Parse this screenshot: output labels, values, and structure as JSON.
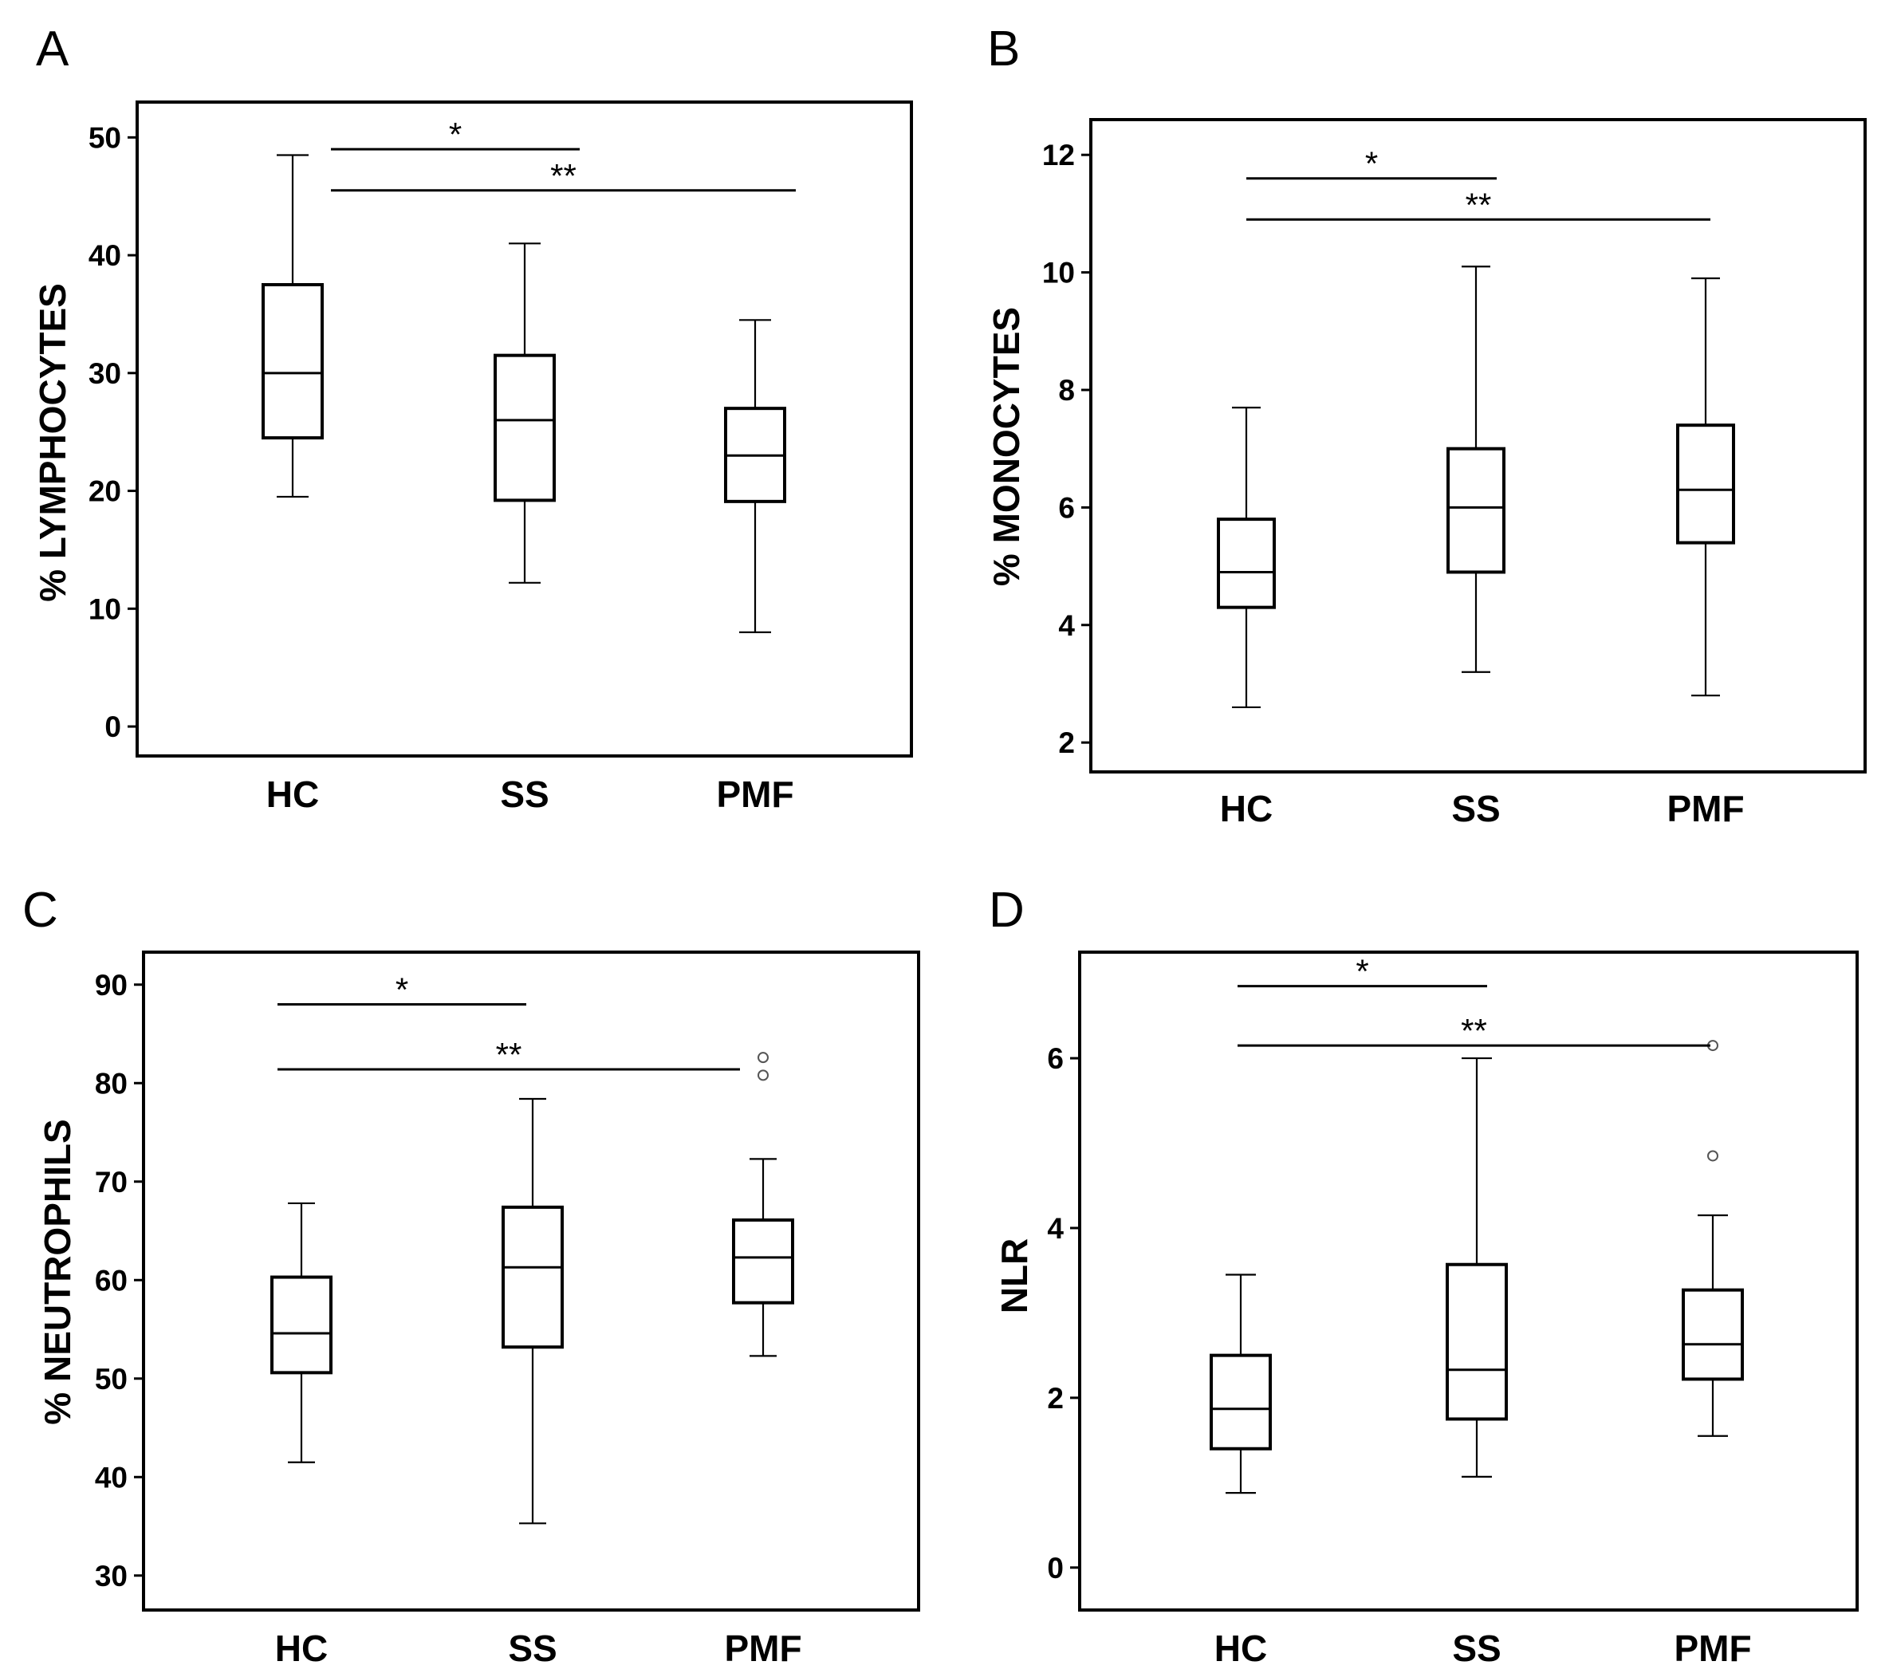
{
  "chart_data": [
    {
      "panel": "A",
      "type": "box",
      "ylabel": "% LYMPHOCYTES",
      "categories": [
        "HC",
        "SS",
        "PMF"
      ],
      "ylim": [
        -2.5,
        53
      ],
      "yticks": [
        0,
        10,
        20,
        30,
        40,
        50
      ],
      "tick_labels": [
        "0",
        "10",
        "20",
        "30",
        "40",
        "50"
      ],
      "boxes": [
        {
          "min": 19.5,
          "q1": 24.5,
          "median": 30.0,
          "q3": 37.5,
          "max": 48.5,
          "outliers": []
        },
        {
          "min": 12.2,
          "q1": 19.2,
          "median": 26.0,
          "q3": 31.5,
          "max": 41.0,
          "outliers": []
        },
        {
          "min": 8.0,
          "q1": 19.1,
          "median": 23.0,
          "q3": 27.0,
          "max": 34.5,
          "outliers": []
        }
      ],
      "significance": [
        {
          "from": 0,
          "to": 1,
          "label": "*",
          "y": 49.0
        },
        {
          "from": 0,
          "to": 2,
          "label": "**",
          "y": 45.5
        }
      ]
    },
    {
      "panel": "B",
      "type": "box",
      "ylabel": "% MONOCYTES",
      "categories": [
        "HC",
        "SS",
        "PMF"
      ],
      "ylim": [
        1.5,
        12.6
      ],
      "yticks": [
        2,
        4,
        6,
        8,
        10,
        12
      ],
      "tick_labels": [
        "2",
        "4",
        "6",
        "8",
        "10",
        "12"
      ],
      "boxes": [
        {
          "min": 2.6,
          "q1": 4.3,
          "median": 4.9,
          "q3": 5.8,
          "max": 7.7,
          "outliers": []
        },
        {
          "min": 3.2,
          "q1": 4.9,
          "median": 6.0,
          "q3": 7.0,
          "max": 10.1,
          "outliers": []
        },
        {
          "min": 2.8,
          "q1": 5.4,
          "median": 6.3,
          "q3": 7.4,
          "max": 9.9,
          "outliers": []
        }
      ],
      "significance": [
        {
          "from": 0,
          "to": 1,
          "label": "*",
          "y": 11.6
        },
        {
          "from": 0,
          "to": 2,
          "label": "**",
          "y": 10.9
        }
      ]
    },
    {
      "panel": "C",
      "type": "box",
      "ylabel": "% NEUTROPHILS",
      "categories": [
        "HC",
        "SS",
        "PMF"
      ],
      "ylim": [
        26.5,
        93.3
      ],
      "yticks": [
        30,
        40,
        50,
        60,
        70,
        80,
        90
      ],
      "tick_labels": [
        "30",
        "40",
        "50",
        "60",
        "70",
        "80",
        "90"
      ],
      "boxes": [
        {
          "min": 41.5,
          "q1": 50.6,
          "median": 54.6,
          "q3": 60.3,
          "max": 67.8,
          "outliers": []
        },
        {
          "min": 35.3,
          "q1": 53.2,
          "median": 61.3,
          "q3": 67.4,
          "max": 78.4,
          "outliers": []
        },
        {
          "min": 52.3,
          "q1": 57.7,
          "median": 62.3,
          "q3": 66.1,
          "max": 72.3,
          "outliers": [
            80.8,
            82.6
          ]
        }
      ],
      "significance": [
        {
          "from": 0,
          "to": 1,
          "label": "*",
          "y": 88.0
        },
        {
          "from": 0,
          "to": 2,
          "label": "**",
          "y": 81.4
        }
      ]
    },
    {
      "panel": "D",
      "type": "box",
      "ylabel": "NLR",
      "categories": [
        "HC",
        "SS",
        "PMF"
      ],
      "ylim": [
        -0.5,
        7.25
      ],
      "yticks": [
        0,
        2,
        4,
        6
      ],
      "tick_labels": [
        "0",
        "2",
        "4",
        "6"
      ],
      "boxes": [
        {
          "min": 0.88,
          "q1": 1.4,
          "median": 1.87,
          "q3": 2.5,
          "max": 3.45,
          "outliers": []
        },
        {
          "min": 1.07,
          "q1": 1.75,
          "median": 2.33,
          "q3": 3.57,
          "max": 6.0,
          "outliers": []
        },
        {
          "min": 1.55,
          "q1": 2.22,
          "median": 2.63,
          "q3": 3.27,
          "max": 4.15,
          "outliers": [
            4.85,
            6.15
          ]
        }
      ],
      "significance": [
        {
          "from": 0,
          "to": 1,
          "label": "*",
          "y": 6.85
        },
        {
          "from": 0,
          "to": 2,
          "label": "**",
          "y": 6.15
        }
      ]
    }
  ]
}
